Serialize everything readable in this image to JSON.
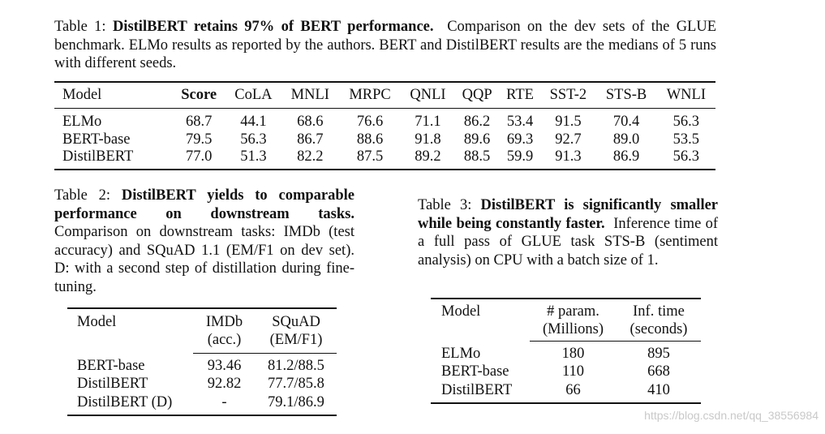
{
  "table1": {
    "caption_label": "Table 1:",
    "caption_bold": "DistilBERT retains 97% of BERT performance.",
    "caption_rest": "Comparison on the dev sets of the GLUE benchmark. ELMo results as reported by the authors. BERT and DistilBERT results are the medians of 5 runs with different seeds.",
    "headers": [
      "Model",
      "Score",
      "CoLA",
      "MNLI",
      "MRPC",
      "QNLI",
      "QQP",
      "RTE",
      "SST-2",
      "STS-B",
      "WNLI"
    ],
    "rows": [
      [
        "ELMo",
        "68.7",
        "44.1",
        "68.6",
        "76.6",
        "71.1",
        "86.2",
        "53.4",
        "91.5",
        "70.4",
        "56.3"
      ],
      [
        "BERT-base",
        "79.5",
        "56.3",
        "86.7",
        "88.6",
        "91.8",
        "89.6",
        "69.3",
        "92.7",
        "89.0",
        "53.5"
      ],
      [
        "DistilBERT",
        "77.0",
        "51.3",
        "82.2",
        "87.5",
        "89.2",
        "88.5",
        "59.9",
        "91.3",
        "86.9",
        "56.3"
      ]
    ]
  },
  "table2": {
    "caption_label": "Table 2:",
    "caption_bold": "DistilBERT yields to comparable performance on downstream tasks.",
    "caption_rest": "Comparison on downstream tasks: IMDb (test accuracy) and SQuAD 1.1 (EM/F1 on dev set). D: with a second step of distillation during fine-tuning.",
    "headers": {
      "model": "Model",
      "imdb_line1": "IMDb",
      "imdb_line2": "(acc.)",
      "squad_line1": "SQuAD",
      "squad_line2": "(EM/F1)"
    },
    "rows": [
      [
        "BERT-base",
        "93.46",
        "81.2/88.5"
      ],
      [
        "DistilBERT",
        "92.82",
        "77.7/85.8"
      ],
      [
        "DistilBERT (D)",
        "-",
        "79.1/86.9"
      ]
    ]
  },
  "table3": {
    "caption_label": "Table 3:",
    "caption_bold": "DistilBERT is significantly smaller while being constantly faster.",
    "caption_rest": "Inference time of a full pass of GLUE task STS-B (sentiment analysis) on CPU with a batch size of 1.",
    "headers": {
      "model": "Model",
      "param_line1": "# param.",
      "param_line2": "(Millions)",
      "time_line1": "Inf. time",
      "time_line2": "(seconds)"
    },
    "rows": [
      [
        "ELMo",
        "180",
        "895"
      ],
      [
        "BERT-base",
        "110",
        "668"
      ],
      [
        "DistilBERT",
        "66",
        "410"
      ]
    ]
  },
  "watermark": "https://blog.csdn.net/qq_38556984"
}
